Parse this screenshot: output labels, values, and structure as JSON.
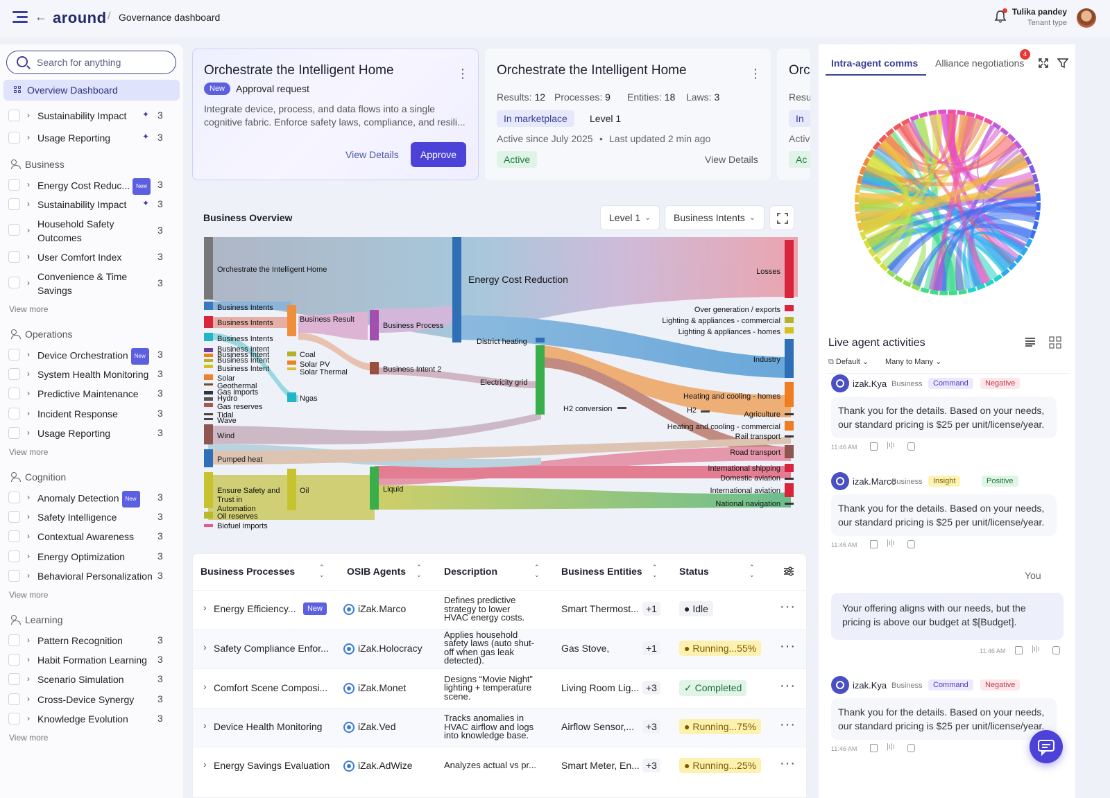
{
  "header": {
    "logo": "around",
    "breadcrumb": "Governance dashboard",
    "user_name": "Tulika pandey",
    "user_role": "Tenant type"
  },
  "sidebar": {
    "search_placeholder": "Search for anything",
    "active_item": "Overview Dashboard",
    "view_more": "View more",
    "top_items": [
      {
        "label": "Sustainability Impact",
        "count": "3"
      },
      {
        "label": "Usage Reporting",
        "count": "3"
      }
    ],
    "groups": [
      {
        "title": "Business",
        "items": [
          {
            "label": "Energy Cost Reduc...",
            "count": "3",
            "badge": "New"
          },
          {
            "label": "Sustainability Impact",
            "count": "3"
          },
          {
            "label": "Household Safety",
            "label2": "Outcomes",
            "count": "3"
          },
          {
            "label": "User Comfort Index",
            "count": "3"
          },
          {
            "label": "Convenience & Time",
            "label2": "Savings",
            "count": "3"
          }
        ]
      },
      {
        "title": "Operations",
        "items": [
          {
            "label": "Device Orchestration",
            "count": "3",
            "badge": "New"
          },
          {
            "label": "System Health Monitoring",
            "count": "3"
          },
          {
            "label": "Predictive Maintenance",
            "count": "3"
          },
          {
            "label": "Incident Response",
            "count": "3"
          },
          {
            "label": "Usage Reporting",
            "count": "3"
          }
        ]
      },
      {
        "title": "Cognition",
        "items": [
          {
            "label": "Anomaly Detection",
            "count": "3",
            "badge": "New"
          },
          {
            "label": "Safety Intelligence",
            "count": "3"
          },
          {
            "label": "Contextual Awareness",
            "count": "3"
          },
          {
            "label": "Energy Optimization",
            "count": "3"
          },
          {
            "label": "Behavioral Personalization",
            "count": "3"
          }
        ]
      },
      {
        "title": "Learning",
        "items": [
          {
            "label": "Pattern Recognition",
            "count": "3"
          },
          {
            "label": "Habit Formation Learning",
            "count": "3"
          },
          {
            "label": "Scenario Simulation",
            "count": "3"
          },
          {
            "label": "Cross-Device Synergy",
            "count": "3"
          },
          {
            "label": "Knowledge Evolution",
            "count": "3"
          }
        ]
      }
    ]
  },
  "cards": {
    "c1": {
      "title": "Orchestrate the Intelligent Home",
      "badge": "New",
      "subtitle": "Approval request",
      "desc1": "Integrate device, process, and data flows into a single",
      "desc2": "cognitive fabric. Enforce safety laws, compliance, and resili...",
      "view": "View Details",
      "approve": "Approve"
    },
    "c2": {
      "title": "Orchestrate the Intelligent Home",
      "results_label": "Results:",
      "results": "12",
      "processes_label": "Processes:",
      "processes": "9",
      "entities_label": "Entities:",
      "entities": "18",
      "laws_label": "Laws:",
      "laws": "3",
      "tag": "In marketplace",
      "level": "Level 1",
      "since": "Active since July 2025",
      "updated": "Last updated 2 min ago",
      "status": "Active",
      "view": "View Details"
    },
    "c3": {
      "title": "Orc",
      "res": "Resu",
      "tag": "In",
      "act": "Activ",
      "status": "Ac"
    }
  },
  "overview": {
    "title": "Business Overview",
    "level": "Level 1",
    "intents": "Business Intents"
  },
  "chart_data": {
    "type": "sankey",
    "left_labels": [
      "Orchestrate the Intelligent Home",
      "Business Intents",
      "Business Intents",
      "Business Intents",
      "Business Intent",
      "Business Intent",
      "Business Intent",
      "Business Intent",
      "Solar",
      "Geothermal",
      "Gas imports",
      "Hydro",
      "Gas reserves",
      "Tidal",
      "Wave",
      "Wind",
      "Pumped heat",
      "Ensure Safety and",
      "Trust in",
      "Automation",
      "Oil reserves",
      "Biofuel imports"
    ],
    "middle_labels": [
      "Business Result",
      "Coal",
      "Solar PV",
      "Solar Thermal",
      "Ngas",
      "Oil",
      "Business Process",
      "Business Intent 2",
      "Liquid",
      "Energy Cost Reduction",
      "District heating",
      "Electricity grid",
      "H2 conversion"
    ],
    "right_labels": [
      "Losses",
      "Over generation / exports",
      "Lighting & appliances - commercial",
      "Lighting & appliances - homes",
      "Industry",
      "Heating and cooling - homes",
      "H2",
      "Agriculture",
      "Heating and cooling - commercial",
      "Rail transport",
      "Road transport",
      "International shipping",
      "Domestic aviation",
      "International aviation",
      "National navigation"
    ]
  },
  "table": {
    "headers": [
      "Business Processes",
      "OSIB Agents",
      "Description",
      "Business Entities",
      "Status"
    ],
    "rows": [
      {
        "process": "Energy Efficiency...",
        "badge": "New",
        "agent": "iZak.Marco",
        "d1": "Defines predictive",
        "d2": "strategy to lower",
        "d3": "HVAC energy costs.",
        "d4": "",
        "entity": "Smart Thermost...",
        "more": "+1",
        "status": "Idle",
        "kind": "idle"
      },
      {
        "process": "Safety Compliance Enfor...",
        "badge": "",
        "agent": "iZak.Holocracy",
        "d1": "Applies household",
        "d2": "safety laws (auto shut-",
        "d3": "off when gas leak",
        "d4": "detected).",
        "entity": "Gas Stove,",
        "more": "+1",
        "status": "Running...55%",
        "kind": "run"
      },
      {
        "process": "Comfort Scene Composi...",
        "badge": "",
        "agent": "iZak.Monet",
        "d1": "Designs “Movie Night”",
        "d2": "lighting + temperature",
        "d3": "scene.",
        "d4": "",
        "entity": "Living Room Lig...",
        "more": "+3",
        "status": "Completed",
        "kind": "done"
      },
      {
        "process": "Device Health Monitoring",
        "badge": "",
        "agent": "iZak.Ved",
        "d1": "Tracks anomalies in",
        "d2": "HVAC airflow and logs",
        "d3": "into knowledge base.",
        "d4": "",
        "entity": "Airflow Sensor,...",
        "more": "+3",
        "status": "Running...75%",
        "kind": "run"
      },
      {
        "process": "Energy Savings Evaluation",
        "badge": "",
        "agent": "iZak.AdWize",
        "d1": "Analyzes actual vs pr...",
        "d2": "",
        "d3": "",
        "d4": "",
        "entity": "Smart Meter, En...",
        "more": "+3",
        "status": "Running...25%",
        "kind": "run"
      }
    ]
  },
  "panel": {
    "tab1": "Intra-agent comms",
    "tab2": "Alliance negotiations",
    "badge": "4",
    "live_title": "Live agent activities",
    "filter1": "Default",
    "filter2": "Many to Many",
    "messages": [
      {
        "name": "izak.Kya",
        "role": "Business",
        "chip1": "Command",
        "chip2": "Negative",
        "l1": "Thank you for the details. Based on your needs,",
        "l2": "our standard pricing is $25 per unit/license/year.",
        "time": "11:46 AM"
      },
      {
        "name": "izak.Marco",
        "role": "Business",
        "chip1": "Insight",
        "chip2": "Positive",
        "l1": "Thank you for the details. Based on your needs,",
        "l2": "our standard pricing is $25 per unit/license/year.",
        "time": "11:46 AM"
      },
      {
        "name": "izak.Kya",
        "role": "Business",
        "chip1": "Command",
        "chip2": "Negative",
        "l1": "Thank you for the details. Based on your needs,",
        "l2": "our standard pricing is $25 per unit/license/year.",
        "time": "11:46 AM"
      }
    ],
    "you_label": "You",
    "you_l1": "Your offering aligns with our needs, but the",
    "you_l2": "pricing is above our budget at $[Budget].",
    "you_time": "11:46 AM"
  }
}
